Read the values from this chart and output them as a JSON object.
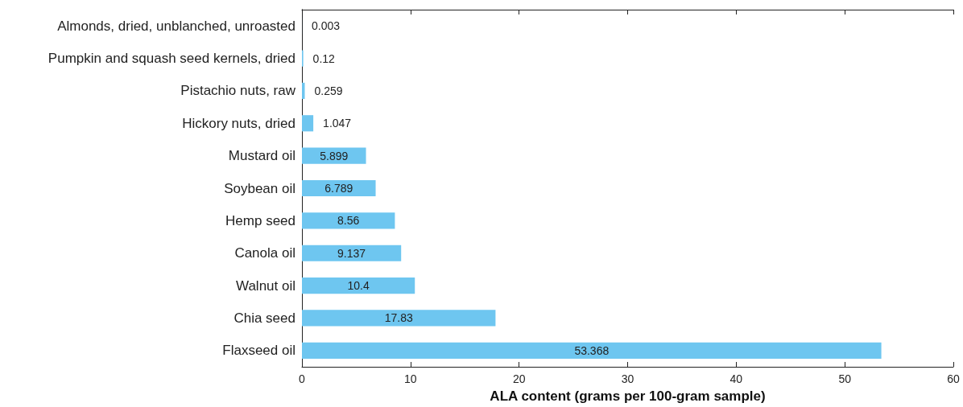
{
  "chart_data": {
    "type": "bar",
    "orientation": "horizontal",
    "xlabel": "ALA content (grams per 100-gram sample)",
    "categories": [
      "Almonds, dried, unblanched, unroasted",
      "Pumpkin and squash seed kernels, dried",
      "Pistachio nuts, raw",
      "Hickory nuts, dried",
      "Mustard oil",
      "Soybean oil",
      "Hemp seed",
      "Canola oil",
      "Walnut oil",
      "Chia seed",
      "Flaxseed oil"
    ],
    "values": [
      0.003,
      0.12,
      0.259,
      1.047,
      5.899,
      6.789,
      8.56,
      9.137,
      10.4,
      17.83,
      53.368
    ],
    "color": "#6ec6f0",
    "xlim": [
      0,
      60
    ],
    "xticks": [
      0,
      10,
      20,
      30,
      40,
      50,
      60
    ],
    "data_labels": true
  }
}
